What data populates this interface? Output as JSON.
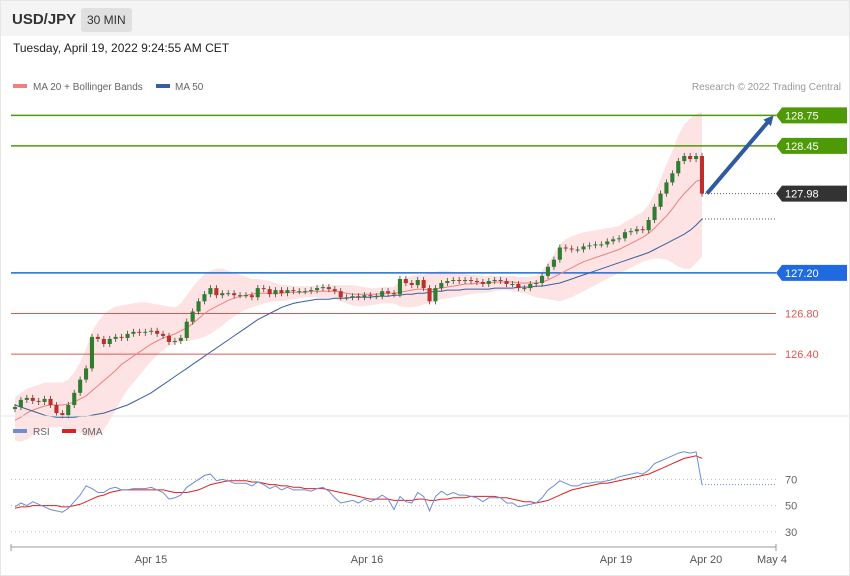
{
  "header": {
    "symbol": "USD/JPY",
    "timeframe": "30 MIN"
  },
  "datetime": "Tuesday, April 19, 2022 9:24:55 AM CET",
  "legend": {
    "ma20": "MA 20 + Bollinger Bands",
    "ma50": "MA 50",
    "copyright": "Research © 2022 Trading Central",
    "rsi": "RSI",
    "rsi_ma": "9MA"
  },
  "colors": {
    "ma20": "#f08080",
    "ma50": "#3a5fa0",
    "bollinger_fill": "#fde3e3",
    "resistance": "#4e9a06",
    "pivot": "#1f6ae0",
    "support": "#e05555",
    "last_price": "#333333",
    "arrow": "#2e5aa0",
    "bull_candle": "#2f7d2f",
    "bear_candle": "#c0302b",
    "rsi_line": "#6b8fd6",
    "rsi_ma_line": "#e02020"
  },
  "chart_data": [
    {
      "type": "candlestick",
      "title": "USD/JPY",
      "timeframe": "30 MIN",
      "x_tick_labels": [
        "Apr 15",
        "Apr 16",
        "Apr 19",
        "Apr 20",
        "May 4"
      ],
      "ylim": [
        125.9,
        128.95
      ],
      "levels": [
        {
          "value": 128.75,
          "label": "128.75",
          "kind": "resistance"
        },
        {
          "value": 128.45,
          "label": "128.45",
          "kind": "resistance"
        },
        {
          "value": 127.98,
          "label": "127.98",
          "kind": "last"
        },
        {
          "value": 127.2,
          "label": "127.20",
          "kind": "pivot"
        },
        {
          "value": 126.8,
          "label": "126.80",
          "kind": "support"
        },
        {
          "value": 126.4,
          "label": "126.40",
          "kind": "support"
        }
      ],
      "close": [
        125.88,
        125.95,
        125.97,
        125.94,
        125.93,
        125.96,
        125.9,
        125.82,
        125.8,
        125.9,
        126.02,
        126.15,
        126.26,
        126.57,
        126.55,
        126.5,
        126.55,
        126.57,
        126.56,
        126.6,
        126.62,
        126.61,
        126.62,
        126.63,
        126.6,
        126.58,
        126.52,
        126.53,
        126.56,
        126.72,
        126.82,
        126.92,
        126.99,
        127.05,
        126.98,
        127.0,
        127.0,
        126.98,
        126.98,
        126.98,
        126.96,
        127.05,
        127.04,
        126.99,
        127.03,
        127.0,
        127.03,
        127.02,
        127.02,
        127.02,
        127.03,
        127.05,
        127.06,
        127.04,
        127.02,
        126.96,
        126.96,
        126.97,
        126.96,
        126.98,
        126.97,
        126.97,
        127.02,
        127.0,
        126.99,
        127.14,
        127.1,
        127.08,
        127.13,
        127.05,
        126.92,
        127.05,
        127.1,
        127.12,
        127.13,
        127.12,
        127.13,
        127.12,
        127.11,
        127.09,
        127.12,
        127.13,
        127.12,
        127.09,
        127.09,
        127.05,
        127.05,
        127.09,
        127.1,
        127.17,
        127.26,
        127.33,
        127.45,
        127.44,
        127.43,
        127.43,
        127.46,
        127.47,
        127.48,
        127.48,
        127.51,
        127.53,
        127.54,
        127.6,
        127.61,
        127.63,
        127.62,
        127.72,
        127.85,
        127.98,
        128.09,
        128.18,
        128.3,
        128.35,
        128.32,
        128.35,
        127.98
      ],
      "ma20": [
        125.75,
        125.78,
        125.82,
        125.85,
        125.87,
        125.89,
        125.9,
        125.9,
        125.9,
        125.91,
        125.93,
        125.96,
        125.99,
        126.04,
        126.09,
        126.14,
        126.19,
        126.24,
        126.3,
        126.34,
        126.38,
        126.42,
        126.46,
        126.5,
        126.53,
        126.56,
        126.58,
        126.6,
        126.63,
        126.66,
        126.7,
        126.75,
        126.8,
        126.84,
        126.87,
        126.9,
        126.93,
        126.95,
        126.97,
        126.98,
        126.99,
        127.0,
        127.0,
        127.0,
        127.0,
        127.0,
        127.01,
        127.01,
        127.01,
        127.01,
        127.02,
        127.02,
        127.02,
        127.02,
        127.02,
        127.01,
        127.0,
        126.99,
        126.99,
        126.99,
        126.99,
        126.99,
        127.0,
        127.0,
        127.0,
        127.01,
        127.02,
        127.03,
        127.04,
        127.04,
        127.03,
        127.04,
        127.05,
        127.06,
        127.07,
        127.08,
        127.09,
        127.09,
        127.1,
        127.1,
        127.1,
        127.11,
        127.11,
        127.11,
        127.11,
        127.1,
        127.1,
        127.1,
        127.1,
        127.11,
        127.13,
        127.16,
        127.19,
        127.22,
        127.25,
        127.28,
        127.31,
        127.33,
        127.35,
        127.37,
        127.39,
        127.41,
        127.43,
        127.46,
        127.49,
        127.52,
        127.55,
        127.59,
        127.64,
        127.7,
        127.76,
        127.83,
        127.91,
        127.98,
        128.04,
        128.1,
        128.12
      ],
      "bollinger_upper": [
        125.98,
        126.02,
        126.06,
        126.08,
        126.1,
        126.12,
        126.12,
        126.12,
        126.12,
        126.15,
        126.22,
        126.32,
        126.45,
        126.62,
        126.72,
        126.79,
        126.84,
        126.87,
        126.88,
        126.89,
        126.9,
        126.91,
        126.91,
        126.9,
        126.89,
        126.88,
        126.87,
        126.86,
        126.9,
        126.98,
        127.06,
        127.13,
        127.19,
        127.22,
        127.24,
        127.24,
        127.22,
        127.2,
        127.18,
        127.16,
        127.14,
        127.14,
        127.13,
        127.12,
        127.1,
        127.08,
        127.08,
        127.07,
        127.07,
        127.07,
        127.07,
        127.08,
        127.08,
        127.08,
        127.08,
        127.08,
        127.08,
        127.08,
        127.07,
        127.06,
        127.05,
        127.05,
        127.06,
        127.06,
        127.06,
        127.12,
        127.15,
        127.17,
        127.18,
        127.18,
        127.2,
        127.21,
        127.22,
        127.22,
        127.21,
        127.2,
        127.19,
        127.18,
        127.18,
        127.17,
        127.17,
        127.17,
        127.17,
        127.17,
        127.17,
        127.16,
        127.16,
        127.16,
        127.17,
        127.22,
        127.3,
        127.38,
        127.48,
        127.53,
        127.56,
        127.58,
        127.6,
        127.61,
        127.62,
        127.63,
        127.64,
        127.65,
        127.66,
        127.7,
        127.73,
        127.77,
        127.8,
        127.87,
        127.98,
        128.12,
        128.27,
        128.4,
        128.55,
        128.66,
        128.72,
        128.76,
        128.78
      ],
      "bollinger_lower": [
        125.55,
        125.54,
        125.56,
        125.6,
        125.63,
        125.66,
        125.68,
        125.68,
        125.68,
        125.67,
        125.66,
        125.63,
        125.6,
        125.58,
        125.6,
        125.66,
        125.75,
        125.85,
        125.96,
        126.05,
        126.12,
        126.19,
        126.26,
        126.33,
        126.39,
        126.44,
        126.48,
        126.5,
        126.52,
        126.53,
        126.54,
        126.55,
        126.57,
        126.6,
        126.64,
        126.68,
        126.73,
        126.77,
        126.81,
        126.84,
        126.86,
        126.88,
        126.9,
        126.91,
        126.92,
        126.92,
        126.93,
        126.94,
        126.95,
        126.96,
        126.96,
        126.96,
        126.95,
        126.95,
        126.94,
        126.92,
        126.9,
        126.88,
        126.87,
        126.87,
        126.88,
        126.89,
        126.9,
        126.9,
        126.9,
        126.87,
        126.86,
        126.86,
        126.87,
        126.89,
        126.9,
        126.92,
        126.94,
        126.95,
        126.96,
        126.97,
        126.98,
        126.99,
        127.0,
        127.0,
        127.01,
        127.02,
        127.03,
        127.03,
        127.02,
        127.01,
        127.0,
        126.98,
        126.96,
        126.95,
        126.94,
        126.93,
        126.92,
        126.94,
        126.96,
        126.99,
        127.02,
        127.05,
        127.08,
        127.11,
        127.14,
        127.17,
        127.2,
        127.22,
        127.25,
        127.28,
        127.31,
        127.33,
        127.34,
        127.34,
        127.33,
        127.3,
        127.26,
        127.24,
        127.24,
        127.3,
        127.36
      ],
      "ma50": [
        125.9,
        125.88,
        125.86,
        125.84,
        125.82,
        125.8,
        125.79,
        125.78,
        125.78,
        125.78,
        125.78,
        125.79,
        125.79,
        125.8,
        125.81,
        125.82,
        125.84,
        125.86,
        125.88,
        125.9,
        125.93,
        125.96,
        125.99,
        126.02,
        126.06,
        126.1,
        126.14,
        126.18,
        126.22,
        126.26,
        126.3,
        126.34,
        126.38,
        126.42,
        126.46,
        126.5,
        126.54,
        126.58,
        126.62,
        126.66,
        126.7,
        126.74,
        126.77,
        126.8,
        126.83,
        126.86,
        126.88,
        126.9,
        126.91,
        126.92,
        126.93,
        126.94,
        126.94,
        126.94,
        126.95,
        126.95,
        126.95,
        126.96,
        126.96,
        126.96,
        126.96,
        126.97,
        126.97,
        126.97,
        126.98,
        126.98,
        126.99,
        126.99,
        127.0,
        127.0,
        127.01,
        127.02,
        127.02,
        127.03,
        127.03,
        127.03,
        127.04,
        127.04,
        127.04,
        127.04,
        127.04,
        127.05,
        127.05,
        127.05,
        127.05,
        127.06,
        127.06,
        127.06,
        127.07,
        127.07,
        127.08,
        127.09,
        127.1,
        127.12,
        127.14,
        127.16,
        127.18,
        127.2,
        127.22,
        127.24,
        127.26,
        127.28,
        127.3,
        127.32,
        127.34,
        127.36,
        127.38,
        127.4,
        127.43,
        127.46,
        127.49,
        127.52,
        127.55,
        127.58,
        127.62,
        127.67,
        127.73
      ],
      "forecast_arrow": {
        "from": 127.98,
        "to": 128.75
      }
    },
    {
      "type": "line",
      "title": "RSI",
      "y_tick_labels": [
        "70",
        "50",
        "30"
      ],
      "ylim": [
        20,
        100
      ],
      "series": [
        {
          "name": "RSI",
          "values": [
            49,
            52,
            50,
            53,
            51,
            49,
            47,
            46,
            45,
            48,
            53,
            58,
            65,
            63,
            60,
            60,
            63,
            64,
            62,
            62,
            63,
            63,
            63,
            64,
            62,
            60,
            55,
            56,
            58,
            64,
            67,
            70,
            73,
            74,
            69,
            70,
            69,
            67,
            67,
            67,
            65,
            68,
            66,
            63,
            65,
            62,
            64,
            62,
            62,
            62,
            61,
            63,
            64,
            61,
            56,
            52,
            53,
            54,
            52,
            55,
            53,
            55,
            58,
            55,
            47,
            57,
            53,
            52,
            60,
            57,
            46,
            57,
            61,
            58,
            60,
            58,
            58,
            57,
            56,
            53,
            56,
            56,
            56,
            52,
            52,
            49,
            50,
            51,
            52,
            56,
            62,
            65,
            69,
            67,
            65,
            65,
            67,
            67,
            68,
            68,
            69,
            70,
            72,
            73,
            74,
            75,
            74,
            77,
            82,
            84,
            86,
            88,
            90,
            91,
            90,
            91,
            66
          ]
        },
        {
          "name": "9MA",
          "values": [
            48,
            49,
            49,
            50,
            50,
            50,
            50,
            50,
            49,
            49,
            50,
            51,
            53,
            55,
            57,
            58,
            60,
            61,
            62,
            62,
            62,
            62,
            62,
            62,
            62,
            62,
            61,
            60,
            60,
            60,
            61,
            62,
            64,
            66,
            67,
            68,
            69,
            69,
            69,
            69,
            68,
            68,
            67,
            66,
            66,
            65,
            65,
            64,
            64,
            63,
            63,
            63,
            63,
            62,
            61,
            60,
            59,
            58,
            57,
            56,
            55,
            55,
            55,
            55,
            54,
            54,
            54,
            54,
            55,
            55,
            54,
            54,
            55,
            55,
            56,
            56,
            56,
            57,
            57,
            57,
            57,
            57,
            56,
            56,
            55,
            54,
            53,
            53,
            52,
            53,
            54,
            56,
            58,
            60,
            62,
            63,
            64,
            65,
            66,
            67,
            67,
            68,
            69,
            70,
            71,
            72,
            73,
            74,
            76,
            78,
            80,
            82,
            84,
            86,
            87,
            88,
            86
          ]
        }
      ]
    }
  ]
}
